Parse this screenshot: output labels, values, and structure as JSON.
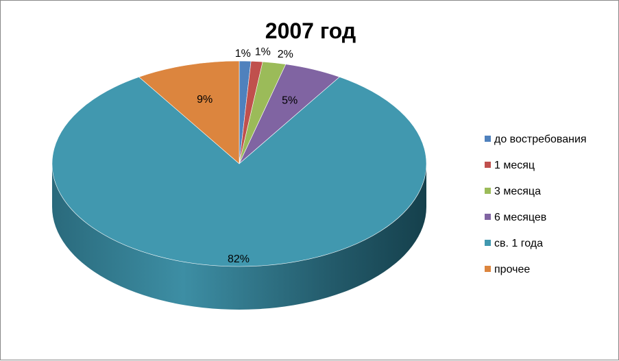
{
  "chart_data": {
    "type": "pie",
    "title": "2007 год",
    "labels": [
      "до востребования",
      "1 месяц",
      "3 месяца",
      "6 месяцев",
      "св. 1 года",
      "прочее"
    ],
    "values": [
      1,
      1,
      2,
      5,
      82,
      9
    ],
    "data_labels": [
      "1%",
      "1%",
      "2%",
      "5%",
      "82%",
      "9%"
    ],
    "colors": [
      "#4f81bd",
      "#c0504d",
      "#9bbb59",
      "#8064a2",
      "#4198af",
      "#dc853e"
    ],
    "style": "3d",
    "legend_position": "right"
  }
}
